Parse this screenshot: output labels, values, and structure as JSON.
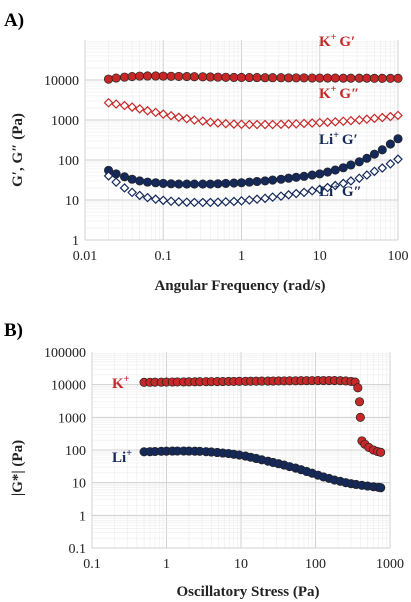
{
  "chart_data": [
    {
      "panel_label": "A)",
      "type": "scatter",
      "xscale": "log",
      "yscale": "log",
      "xlim": [
        0.01,
        100
      ],
      "ylim": [
        1,
        100000
      ],
      "xticks": [
        "0.01",
        "0.1",
        "1",
        "10",
        "100"
      ],
      "yticks": [
        "1",
        "10",
        "100",
        "1000",
        "10000"
      ],
      "xlabel": "Angular Frequency (rad/s)",
      "ylabel": "G′, G″ (Pa)",
      "grid": true,
      "series": [
        {
          "name": "K⁺ G′",
          "color": "#c62828",
          "marker": "circle",
          "filled": true,
          "x": [
            0.02,
            0.025,
            0.032,
            0.04,
            0.05,
            0.063,
            0.08,
            0.1,
            0.126,
            0.158,
            0.2,
            0.25,
            0.32,
            0.4,
            0.5,
            0.63,
            0.8,
            1,
            1.26,
            1.58,
            2,
            2.5,
            3.2,
            4,
            5,
            6.3,
            8,
            10,
            12.6,
            15.8,
            20,
            25,
            32,
            40,
            50,
            63,
            80,
            100
          ],
          "values": [
            10500,
            11200,
            11800,
            12200,
            12500,
            12600,
            12600,
            12500,
            12400,
            12300,
            12200,
            12100,
            12000,
            11900,
            11800,
            11700,
            11600,
            11600,
            11500,
            11500,
            11400,
            11400,
            11400,
            11300,
            11300,
            11300,
            11200,
            11200,
            11200,
            11200,
            11100,
            11100,
            11100,
            11100,
            11000,
            11000,
            11000,
            11000
          ]
        },
        {
          "name": "K⁺ G″",
          "color": "#c62828",
          "marker": "diamond",
          "filled": false,
          "x": [
            0.02,
            0.025,
            0.032,
            0.04,
            0.05,
            0.063,
            0.08,
            0.1,
            0.126,
            0.158,
            0.2,
            0.25,
            0.32,
            0.4,
            0.5,
            0.63,
            0.8,
            1,
            1.26,
            1.58,
            2,
            2.5,
            3.2,
            4,
            5,
            6.3,
            8,
            10,
            12.6,
            15.8,
            20,
            25,
            32,
            40,
            50,
            63,
            80,
            100
          ],
          "values": [
            2700,
            2500,
            2300,
            2100,
            1900,
            1700,
            1550,
            1400,
            1280,
            1170,
            1080,
            1000,
            940,
            880,
            840,
            810,
            790,
            780,
            770,
            770,
            770,
            770,
            780,
            790,
            800,
            820,
            840,
            860,
            880,
            900,
            930,
            960,
            1000,
            1050,
            1100,
            1150,
            1220,
            1300
          ]
        },
        {
          "name": "Li⁺ G′",
          "color": "#14285a",
          "marker": "circle",
          "filled": true,
          "x": [
            0.02,
            0.025,
            0.032,
            0.04,
            0.05,
            0.063,
            0.08,
            0.1,
            0.126,
            0.158,
            0.2,
            0.25,
            0.32,
            0.4,
            0.5,
            0.63,
            0.8,
            1,
            1.26,
            1.58,
            2,
            2.5,
            3.2,
            4,
            5,
            6.3,
            8,
            10,
            12.6,
            15.8,
            20,
            25,
            32,
            40,
            50,
            63,
            80,
            100
          ],
          "values": [
            55,
            45,
            38,
            33,
            30,
            28,
            27,
            26,
            25.5,
            25,
            25,
            25,
            25,
            25,
            25.5,
            26,
            26.5,
            27,
            28,
            29,
            30,
            31.5,
            33,
            35,
            37,
            39,
            42,
            45,
            50,
            56,
            64,
            75,
            90,
            110,
            140,
            180,
            250,
            340
          ]
        },
        {
          "name": "Li⁺ G″",
          "color": "#14285a",
          "marker": "diamond",
          "filled": false,
          "x": [
            0.02,
            0.025,
            0.032,
            0.04,
            0.05,
            0.063,
            0.08,
            0.1,
            0.126,
            0.158,
            0.2,
            0.25,
            0.32,
            0.4,
            0.5,
            0.63,
            0.8,
            1,
            1.26,
            1.58,
            2,
            2.5,
            3.2,
            4,
            5,
            6.3,
            8,
            10,
            12.6,
            15.8,
            20,
            25,
            32,
            40,
            50,
            63,
            80,
            100
          ],
          "values": [
            40,
            28,
            20,
            15.5,
            13,
            11.5,
            10.5,
            9.8,
            9.3,
            9,
            8.8,
            8.7,
            8.7,
            8.7,
            8.8,
            9,
            9.2,
            9.5,
            10,
            10.5,
            11,
            11.8,
            12.5,
            13.5,
            14.5,
            15.5,
            17,
            18.5,
            20.5,
            23,
            26,
            30,
            35,
            42,
            52,
            63,
            80,
            105
          ]
        }
      ],
      "annotations": [
        {
          "ion": "K",
          "charge": "+",
          "suffix": "G′",
          "color": "#c62828"
        },
        {
          "ion": "K",
          "charge": "+",
          "suffix": "G″",
          "color": "#c62828"
        },
        {
          "ion": "Li",
          "charge": "+",
          "suffix": "G′",
          "color": "#14285a"
        },
        {
          "ion": "Li",
          "charge": "+",
          "suffix": "G″",
          "color": "#14285a"
        }
      ]
    },
    {
      "panel_label": "B)",
      "type": "scatter",
      "xscale": "log",
      "yscale": "log",
      "xlim": [
        0.1,
        1000
      ],
      "ylim": [
        0.1,
        100000
      ],
      "xticks": [
        "0.1",
        "1",
        "10",
        "100",
        "1000"
      ],
      "yticks": [
        "0.1",
        "1",
        "10",
        "100",
        "1000",
        "10000",
        "100000"
      ],
      "xlabel": "Oscillatory Stress (Pa)",
      "ylabel": "|G*| (Pa)",
      "grid": true,
      "series": [
        {
          "name": "K⁺",
          "color": "#c62828",
          "marker": "circle",
          "filled": true,
          "x": [
            0.5,
            0.6,
            0.7,
            0.85,
            1,
            1.2,
            1.4,
            1.7,
            2,
            2.4,
            2.8,
            3.4,
            4,
            4.8,
            5.7,
            6.8,
            8,
            9.5,
            11.5,
            13.5,
            16,
            19,
            23,
            27,
            32,
            38,
            45,
            54,
            64,
            76,
            90,
            108,
            128,
            152,
            180,
            215,
            255,
            300,
            340,
            370,
            390,
            400,
            420,
            460,
            520,
            600,
            680,
            750
          ],
          "values": [
            11800,
            11850,
            11900,
            11950,
            12000,
            12050,
            12100,
            12150,
            12200,
            12250,
            12300,
            12350,
            12400,
            12450,
            12500,
            12550,
            12600,
            12650,
            12700,
            12750,
            12800,
            12850,
            12900,
            12950,
            13000,
            13050,
            13100,
            13150,
            13200,
            13250,
            13300,
            13350,
            13400,
            13400,
            13350,
            13250,
            13000,
            12600,
            12000,
            8000,
            3000,
            1000,
            190,
            150,
            120,
            100,
            90,
            85
          ]
        },
        {
          "name": "Li⁺",
          "color": "#14285a",
          "marker": "circle",
          "filled": true,
          "x": [
            0.5,
            0.6,
            0.7,
            0.85,
            1,
            1.2,
            1.4,
            1.7,
            2,
            2.4,
            2.8,
            3.4,
            4,
            4.8,
            5.7,
            6.8,
            8,
            9.5,
            11.5,
            13.5,
            16,
            19,
            23,
            27,
            32,
            38,
            45,
            54,
            64,
            76,
            90,
            108,
            128,
            152,
            180,
            215,
            255,
            300,
            350,
            420,
            500,
            600,
            700,
            750
          ],
          "values": [
            88,
            89,
            90,
            91,
            92,
            92.5,
            93,
            93,
            92.5,
            92,
            91,
            89,
            87,
            84,
            81,
            78,
            74,
            70,
            65,
            60,
            55,
            50,
            45.5,
            41.5,
            38,
            34.5,
            31,
            28,
            25,
            22,
            19.5,
            17,
            15,
            13.5,
            12,
            11,
            10,
            9.3,
            8.8,
            8.3,
            7.9,
            7.5,
            7.2,
            7
          ]
        }
      ],
      "annotations": [
        {
          "ion": "K",
          "charge": "+",
          "suffix": "",
          "color": "#c62828"
        },
        {
          "ion": "Li",
          "charge": "+",
          "suffix": "",
          "color": "#14285a"
        }
      ]
    }
  ]
}
